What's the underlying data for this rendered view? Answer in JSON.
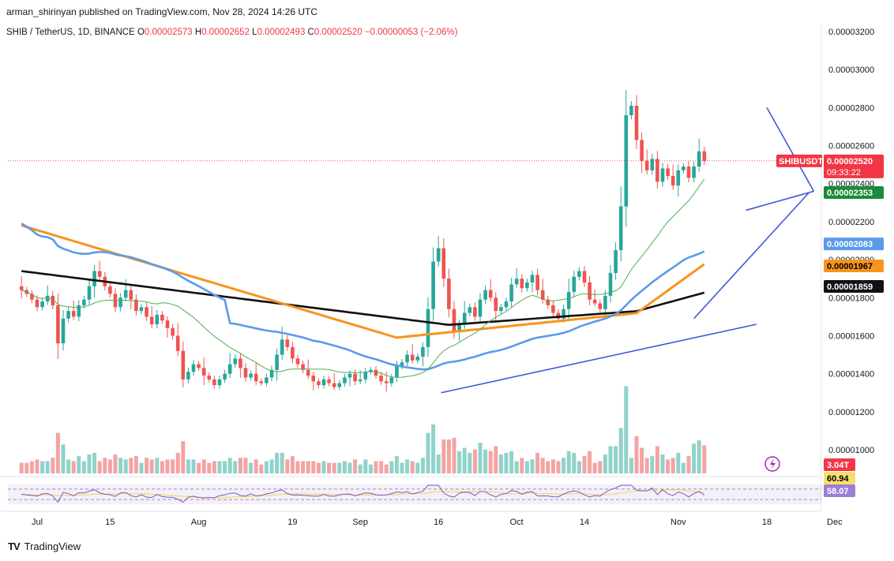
{
  "header": {
    "publisher": "arman_shirinyan published on TradingView.com, Nov 28, 2024 14:26 UTC",
    "symbol": "SHIB / TetherUS, 1D, BINANCE",
    "o_label": "O",
    "o": "0.00002573",
    "h_label": "H",
    "h": "0.00002652",
    "l_label": "L",
    "l": "0.00002493",
    "c_label": "C",
    "c": "0.00002520",
    "change": "−0.00000053 (−2.06%)"
  },
  "footer": {
    "logo": "TV",
    "brand": "TradingView"
  },
  "price_badges": {
    "ticker": "SHIBUSDT",
    "last": "0.00002520",
    "countdown": "09:33:22",
    "ma_green": "0.00002353",
    "ma_blue": "0.00002083",
    "ma_orange": "0.00001967",
    "ma_black": "0.00001859",
    "volume": "3.04T",
    "rsi_ma": "60.94",
    "rsi": "58.07"
  },
  "colors": {
    "up": "#26a69a",
    "down": "#ef5350",
    "vol_up": "#8fd3c9",
    "vol_down": "#f4a3a3",
    "ma_green": "#4caf50",
    "ma_blue": "#5b9bea",
    "ma_orange": "#f7941d",
    "ma_black": "#111111",
    "trendline": "#3d5ad8",
    "rsi": "#7e57c2",
    "rsi_ma": "#f5d76e"
  },
  "chart_data": {
    "type": "candlestick",
    "title": "SHIB / TetherUS, 1D, BINANCE",
    "y_axis": {
      "ticks": [
        "0.00003200",
        "0.00003000",
        "0.00002800",
        "0.00002600",
        "0.00002400",
        "0.00002200",
        "0.00002000",
        "0.00001800",
        "0.00001600",
        "0.00001400",
        "0.00001200",
        "0.00001000"
      ],
      "ylim": [
        9.4e-06,
        3.32e-05
      ]
    },
    "x_axis": {
      "labels": [
        {
          "t": "Jul",
          "day": 0
        },
        {
          "t": "15",
          "day": 14
        },
        {
          "t": "Aug",
          "day": 31
        },
        {
          "t": "19",
          "day": 49
        },
        {
          "t": "Sep",
          "day": 62
        },
        {
          "t": "16",
          "day": 77
        },
        {
          "t": "Oct",
          "day": 92
        },
        {
          "t": "14",
          "day": 105
        },
        {
          "t": "Nov",
          "day": 123
        },
        {
          "t": "18",
          "day": 140
        },
        {
          "t": "Dec",
          "day": 153
        }
      ]
    },
    "start_day": -3,
    "closes": [
      18.4,
      18.2,
      17.9,
      17.5,
      17.8,
      18.1,
      17.6,
      15.6,
      16.9,
      17.3,
      17.0,
      17.6,
      17.9,
      18.6,
      19.4,
      19.1,
      18.6,
      18.2,
      17.5,
      18.0,
      18.4,
      17.9,
      17.3,
      17.5,
      17.0,
      16.6,
      17.1,
      16.8,
      16.4,
      16.0,
      15.2,
      13.7,
      14.1,
      14.5,
      14.3,
      13.9,
      13.7,
      13.4,
      13.7,
      14.0,
      14.5,
      14.8,
      14.3,
      13.8,
      14.0,
      13.6,
      13.5,
      13.8,
      14.2,
      15.0,
      15.8,
      15.4,
      14.8,
      14.5,
      14.2,
      13.9,
      13.6,
      13.4,
      13.7,
      13.5,
      13.3,
      13.5,
      13.8,
      14.0,
      13.6,
      13.7,
      14.1,
      14.2,
      13.9,
      13.6,
      13.5,
      13.8,
      14.4,
      14.6,
      15.0,
      14.7,
      14.9,
      15.4,
      17.4,
      19.9,
      20.6,
      19.0,
      17.4,
      16.2,
      16.6,
      17.2,
      17.5,
      17.0,
      17.9,
      18.4,
      18.0,
      17.3,
      17.5,
      17.8,
      18.7,
      19.0,
      18.5,
      18.8,
      19.2,
      18.4,
      17.9,
      17.6,
      17.2,
      16.9,
      17.4,
      18.3,
      19.1,
      19.4,
      18.8,
      17.9,
      17.7,
      17.4,
      18.1,
      19.3,
      20.5,
      22.8,
      27.6,
      28.1,
      26.3,
      25.2,
      24.7,
      25.3,
      24.1,
      24.8,
      24.4,
      23.9,
      24.7,
      24.9,
      24.3,
      24.9,
      25.7,
      25.2
    ],
    "volume": {
      "ylim": [
        0,
        11
      ]
    },
    "rsi": {
      "ylim": [
        0,
        100
      ],
      "bands": [
        30,
        70
      ]
    },
    "trendlines": [
      {
        "from": [
          77.5,
          13.0
        ],
        "to": [
          138,
          16.6
        ]
      },
      {
        "from": [
          126,
          16.9
        ],
        "to": [
          148,
          23.5
        ]
      },
      {
        "from": [
          136,
          22.6
        ],
        "to": [
          149,
          23.6
        ]
      },
      {
        "from": [
          140,
          28.0
        ],
        "to": [
          149,
          23.6
        ]
      }
    ]
  }
}
